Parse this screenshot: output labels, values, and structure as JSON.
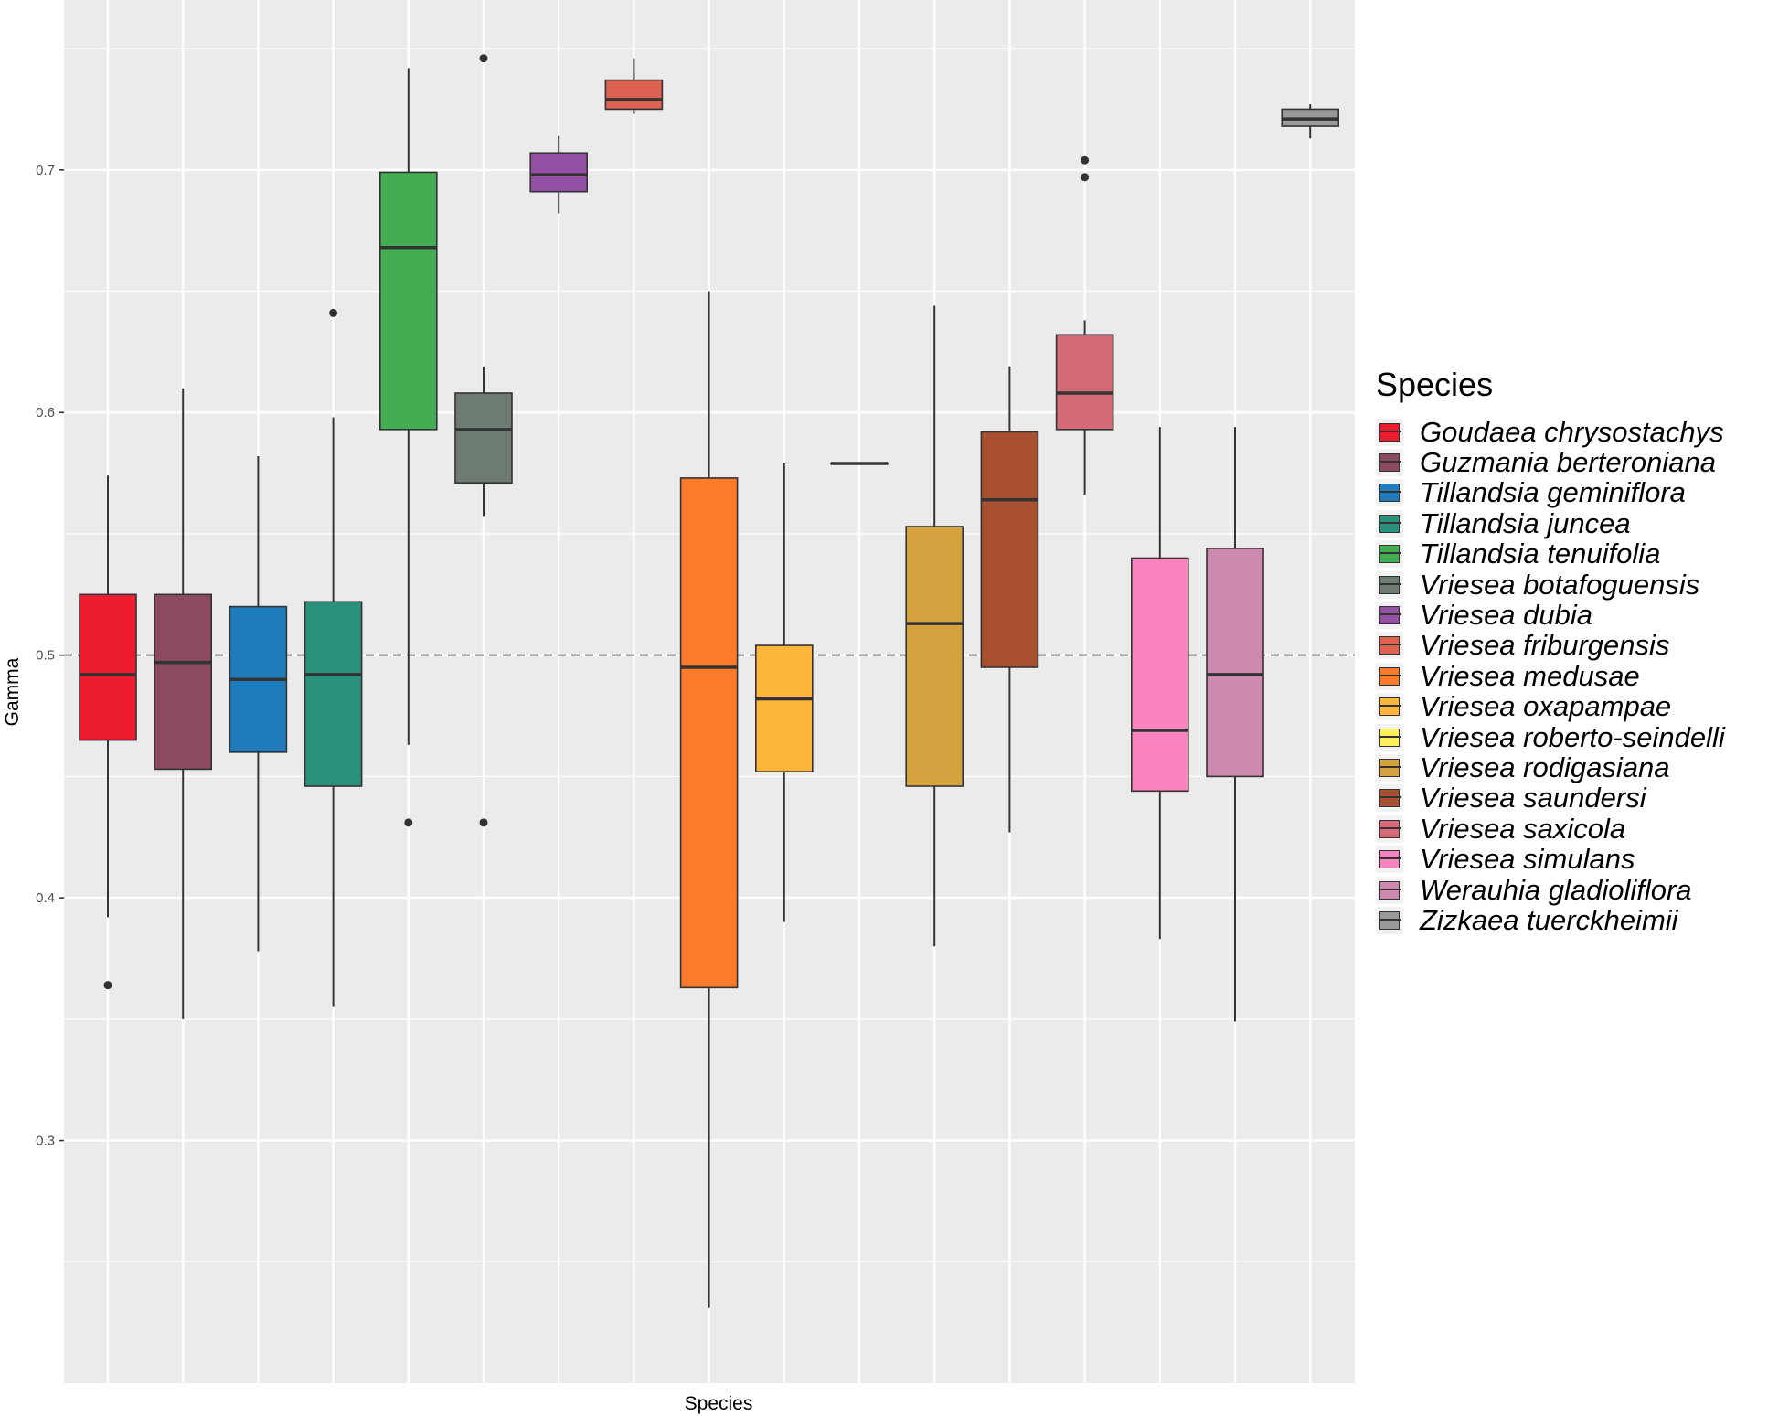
{
  "chart_data": {
    "type": "boxplot",
    "title": "",
    "xlabel": "Species",
    "ylabel": "Gamma",
    "ylim": [
      0.2,
      0.77
    ],
    "yticks": [
      0.3,
      0.4,
      0.5,
      0.6,
      0.7
    ],
    "ytick_labels": [
      "0.3",
      "0.4",
      "0.5",
      "0.6",
      "0.7"
    ],
    "reference_line": 0.5,
    "grid": true,
    "legend_title": "Species",
    "legend_position": "right",
    "x_slots": 17,
    "series": [
      {
        "name": "Goudaea chrysostachys",
        "color": "#ED1C2E",
        "slot": 0,
        "q1": 0.465,
        "median": 0.492,
        "q3": 0.525,
        "lower": 0.392,
        "upper": 0.574,
        "outliers": [
          0.364
        ]
      },
      {
        "name": "Guzmania berteroniana",
        "color": "#8B4A62",
        "slot": 1,
        "q1": 0.453,
        "median": 0.497,
        "q3": 0.525,
        "lower": 0.35,
        "upper": 0.61,
        "outliers": []
      },
      {
        "name": "Tillandsia geminiflora",
        "color": "#1F7BBC",
        "slot": 2,
        "q1": 0.46,
        "median": 0.49,
        "q3": 0.52,
        "lower": 0.378,
        "upper": 0.582,
        "outliers": []
      },
      {
        "name": "Tillandsia juncea",
        "color": "#2A927B",
        "slot": 3,
        "q1": 0.446,
        "median": 0.492,
        "q3": 0.522,
        "lower": 0.355,
        "upper": 0.598,
        "outliers": [
          0.641
        ]
      },
      {
        "name": "Tillandsia tenuifolia",
        "color": "#44AD51",
        "slot": 4,
        "q1": 0.593,
        "median": 0.668,
        "q3": 0.699,
        "lower": 0.463,
        "upper": 0.742,
        "outliers": [
          0.431
        ]
      },
      {
        "name": "Vriesea botafoguensis",
        "color": "#6E7B72",
        "slot": 5,
        "q1": 0.571,
        "median": 0.593,
        "q3": 0.608,
        "lower": 0.557,
        "upper": 0.619,
        "outliers": [
          0.431,
          0.746
        ]
      },
      {
        "name": "Vriesea dubia",
        "color": "#9450A4",
        "slot": 6,
        "q1": 0.691,
        "median": 0.698,
        "q3": 0.707,
        "lower": 0.682,
        "upper": 0.714,
        "outliers": []
      },
      {
        "name": "Vriesea friburgensis",
        "color": "#DD6252",
        "slot": 7,
        "q1": 0.725,
        "median": 0.729,
        "q3": 0.737,
        "lower": 0.723,
        "upper": 0.746,
        "outliers": []
      },
      {
        "name": "Vriesea medusae",
        "color": "#FC7B2A",
        "slot": 8,
        "q1": 0.363,
        "median": 0.495,
        "q3": 0.573,
        "lower": 0.231,
        "upper": 0.65,
        "outliers": []
      },
      {
        "name": "Vriesea oxapampae",
        "color": "#FDB53B",
        "slot": 9,
        "q1": 0.452,
        "median": 0.482,
        "q3": 0.504,
        "lower": 0.39,
        "upper": 0.579,
        "outliers": []
      },
      {
        "name": "Vriesea roberto-seindelli",
        "color": "#FFF15C",
        "slot": 10,
        "q1": 0.579,
        "median": 0.579,
        "q3": 0.579,
        "lower": 0.579,
        "upper": 0.579,
        "outliers": []
      },
      {
        "name": "Vriesea rodigasiana",
        "color": "#D6A23F",
        "slot": 11,
        "q1": 0.446,
        "median": 0.513,
        "q3": 0.553,
        "lower": 0.38,
        "upper": 0.644,
        "outliers": []
      },
      {
        "name": "Vriesea saundersi",
        "color": "#A8502F",
        "slot": 12,
        "q1": 0.495,
        "median": 0.564,
        "q3": 0.592,
        "lower": 0.427,
        "upper": 0.619,
        "outliers": []
      },
      {
        "name": "Vriesea saxicola",
        "color": "#D56A78",
        "slot": 13,
        "q1": 0.593,
        "median": 0.608,
        "q3": 0.632,
        "lower": 0.566,
        "upper": 0.638,
        "outliers": [
          0.697,
          0.704
        ]
      },
      {
        "name": "Vriesea simulans",
        "color": "#FB84C0",
        "slot": 14,
        "q1": 0.444,
        "median": 0.469,
        "q3": 0.54,
        "lower": 0.383,
        "upper": 0.594,
        "outliers": []
      },
      {
        "name": "Werauhia gladioliflora",
        "color": "#CE8AAE",
        "slot": 15,
        "q1": 0.45,
        "median": 0.492,
        "q3": 0.544,
        "lower": 0.349,
        "upper": 0.594,
        "outliers": []
      },
      {
        "name": "Zizkaea tuerckheimii",
        "color": "#999999",
        "slot": 16,
        "q1": 0.718,
        "median": 0.721,
        "q3": 0.725,
        "lower": 0.713,
        "upper": 0.727,
        "outliers": []
      }
    ]
  }
}
